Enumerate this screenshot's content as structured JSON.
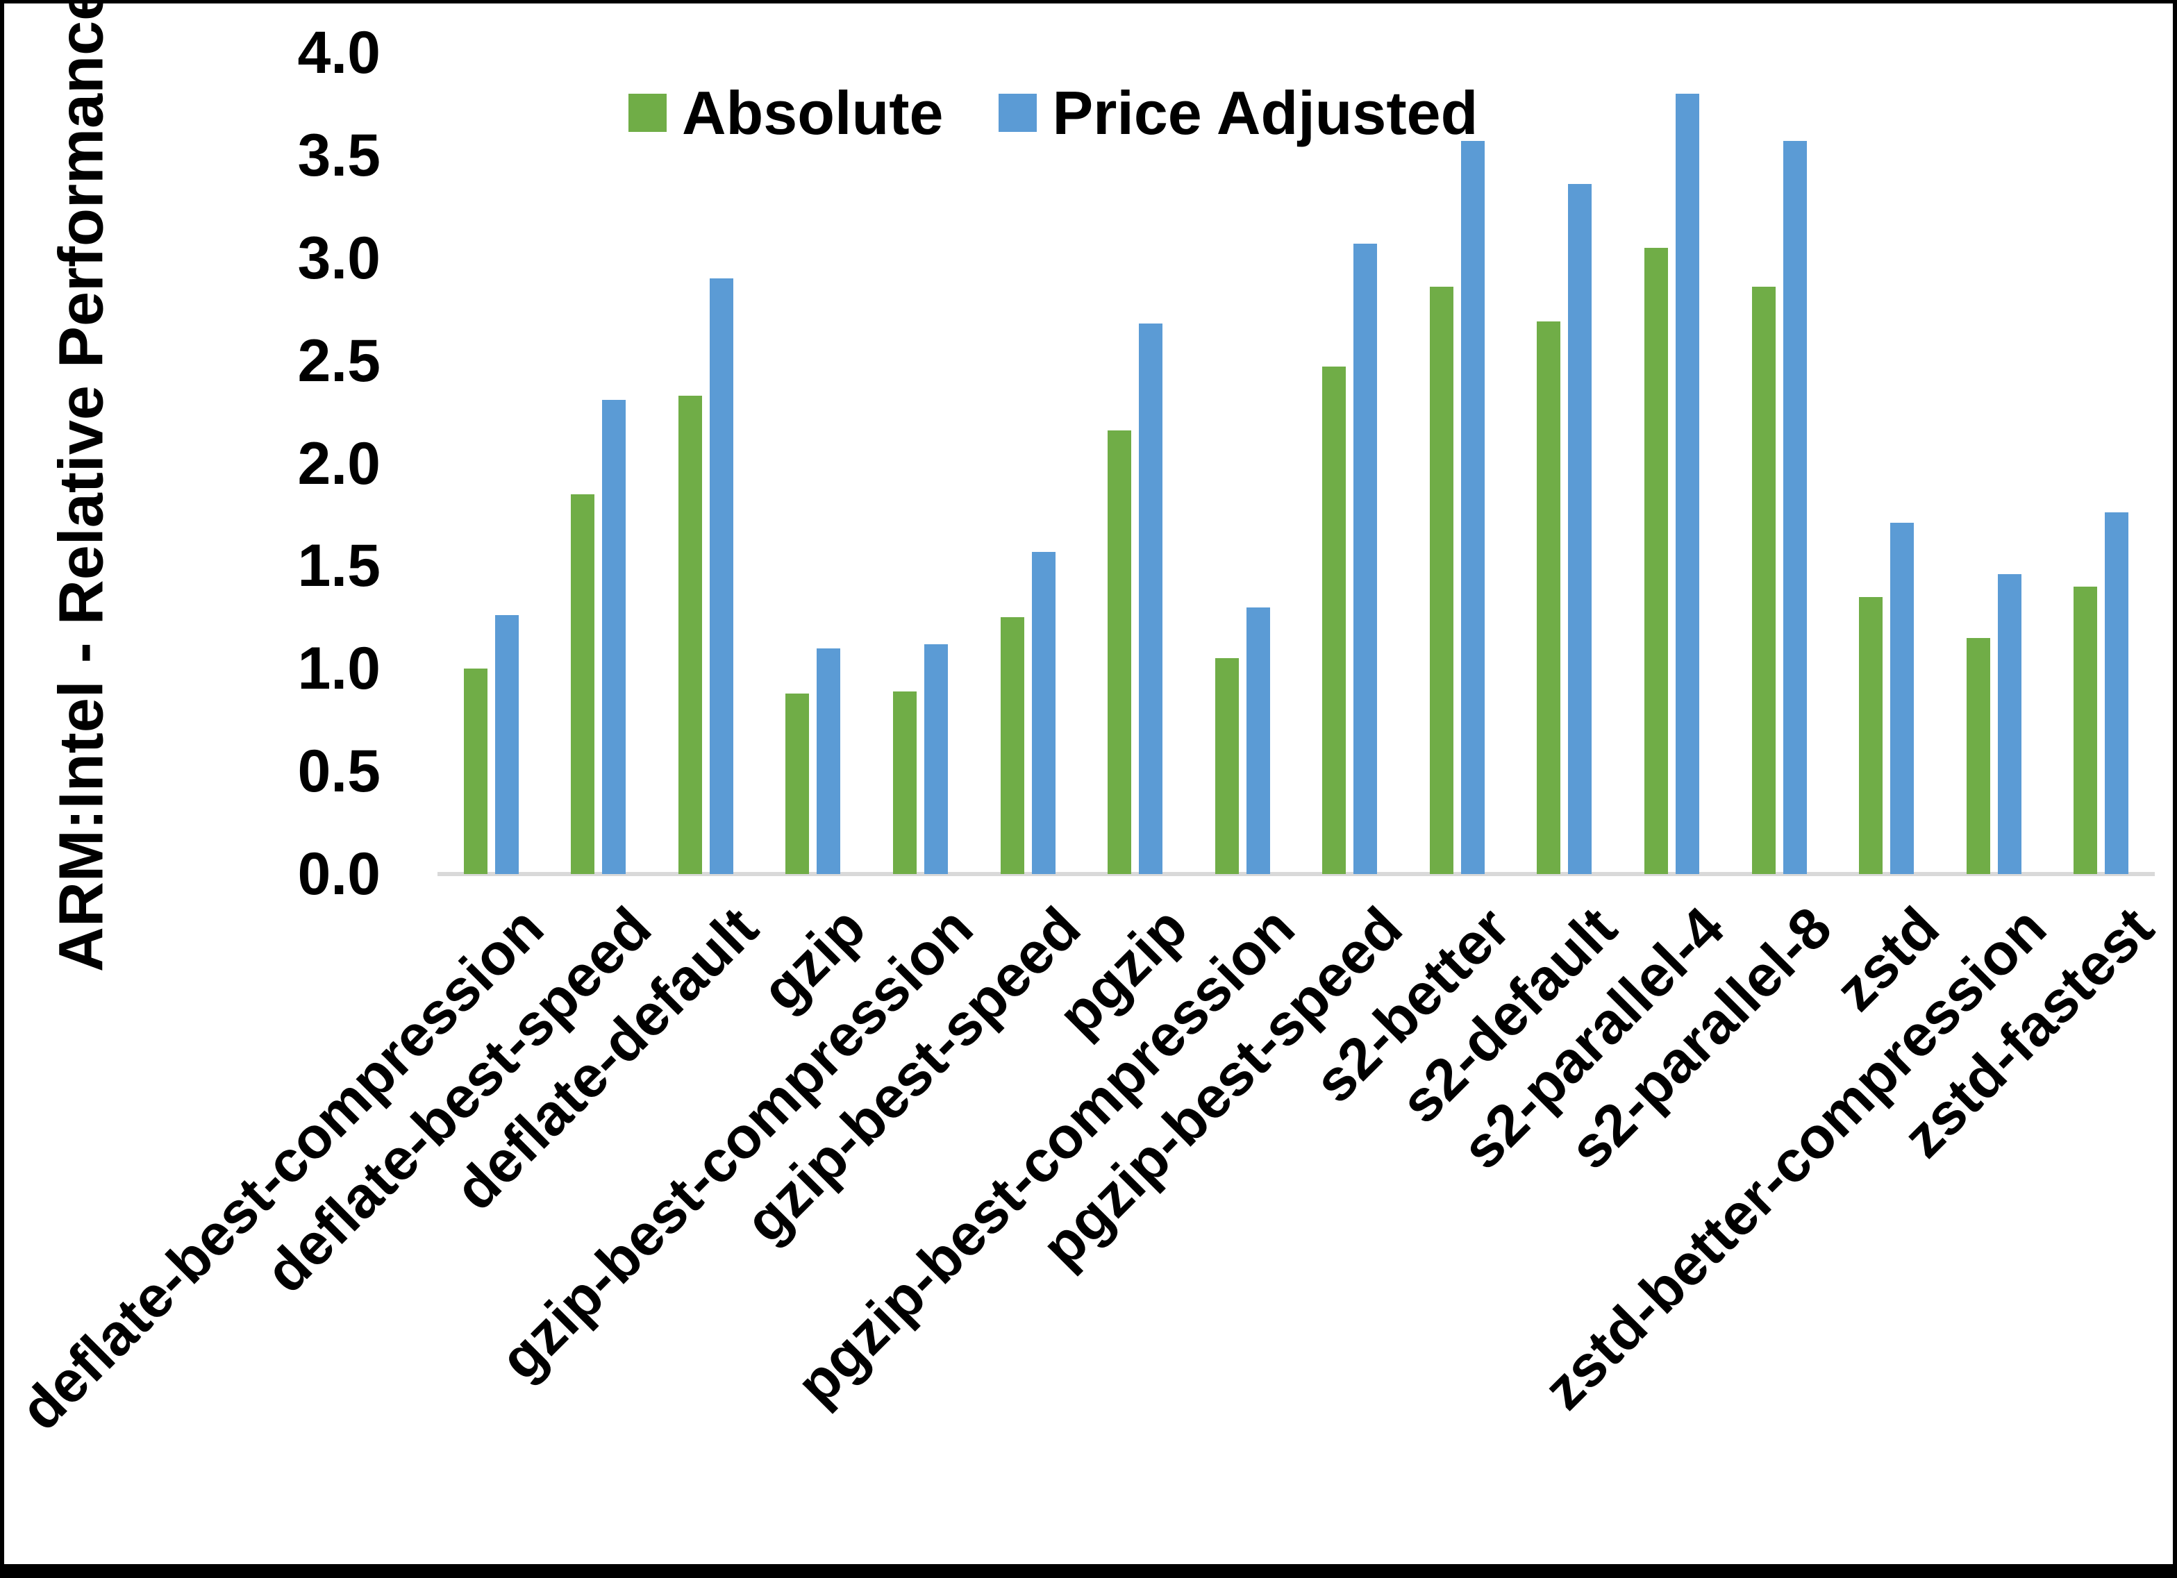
{
  "chart_data": {
    "type": "bar",
    "title": "",
    "xlabel": "",
    "ylabel": "ARM:Intel - Relative Performance",
    "ylim": [
      0.0,
      4.0
    ],
    "ytick_step": 0.5,
    "ytick_labels": [
      "0.0",
      "0.5",
      "1.0",
      "1.5",
      "2.0",
      "2.5",
      "3.0",
      "3.5",
      "4.0"
    ],
    "grid": false,
    "legend_position": "top-center",
    "background_color": "#ffffff",
    "axis_line_color": "#d9d9d9",
    "categories": [
      "deflate-best-compression",
      "deflate-best-speed",
      "deflate-default",
      "gzip",
      "gzip-best-compression",
      "gzip-best-speed",
      "pgzip",
      "pgzip-best-compression",
      "pgzip-best-speed",
      "s2-better",
      "s2-default",
      "s2-parallel-4",
      "s2-parallel-8",
      "zstd",
      "zstd-better-compression",
      "zstd-fastest"
    ],
    "series": [
      {
        "name": "Absolute",
        "color": "#70AD47",
        "values": [
          1.0,
          1.85,
          2.33,
          0.88,
          0.89,
          1.25,
          2.16,
          1.05,
          2.47,
          2.86,
          2.69,
          3.05,
          2.86,
          1.35,
          1.15,
          1.4
        ]
      },
      {
        "name": "Price Adjusted",
        "color": "#5B9BD5",
        "values": [
          1.26,
          2.31,
          2.9,
          1.1,
          1.12,
          1.57,
          2.68,
          1.3,
          3.07,
          3.57,
          3.36,
          3.8,
          3.57,
          1.71,
          1.46,
          1.76
        ]
      }
    ]
  }
}
